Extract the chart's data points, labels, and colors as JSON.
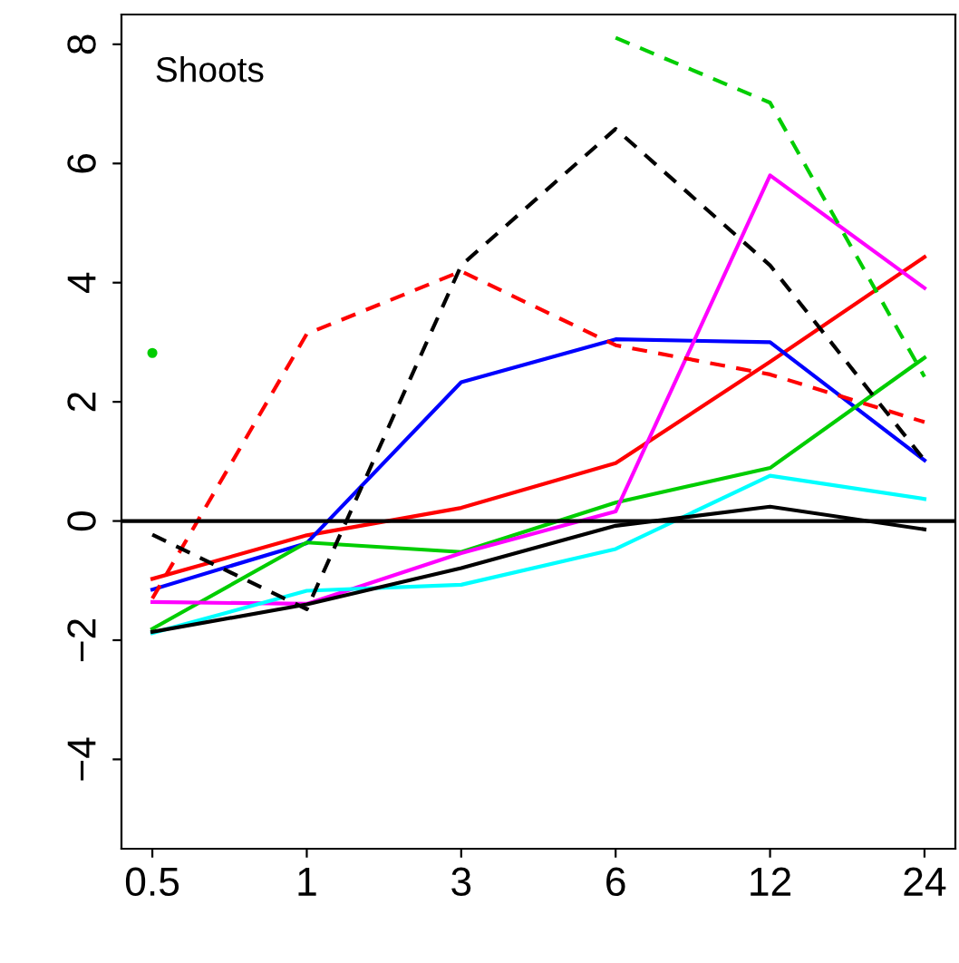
{
  "chart_data": {
    "type": "line",
    "categories": [
      "0.5",
      "1",
      "3",
      "6",
      "12",
      "24"
    ],
    "series": [
      {
        "color": "#ff0000",
        "line_style": "solid",
        "values": [
          -0.97,
          -0.24,
          0.22,
          0.97,
          2.67,
          4.43
        ]
      },
      {
        "color": "#0000ff",
        "line_style": "solid",
        "values": [
          -1.15,
          -0.37,
          2.33,
          3.05,
          3.0,
          1.02
        ]
      },
      {
        "color": "#00cd00",
        "line_style": "solid",
        "values": [
          -1.81,
          -0.36,
          -0.52,
          0.31,
          0.89,
          2.74
        ]
      },
      {
        "color": "#ff00ff",
        "line_style": "solid",
        "values": [
          -1.36,
          -1.39,
          -0.54,
          0.16,
          5.8,
          3.91
        ]
      },
      {
        "color": "#00ffff",
        "line_style": "solid",
        "values": [
          -1.88,
          -1.17,
          -1.07,
          -0.47,
          0.76,
          0.37
        ]
      },
      {
        "color": "#000000",
        "line_style": "solid",
        "values": [
          -1.86,
          -1.4,
          -0.79,
          -0.08,
          0.24,
          -0.14
        ]
      },
      {
        "color": "#ff0000",
        "line_style": "dashed",
        "values": [
          -1.3,
          3.14,
          4.19,
          2.95,
          2.46,
          1.66
        ]
      },
      {
        "color": "#000000",
        "line_style": "dashed",
        "values": [
          -0.23,
          -1.48,
          4.29,
          6.58,
          4.29,
          1.02
        ]
      },
      {
        "color": "#00cd00",
        "line_style": "dashed",
        "values": [
          2.82,
          null,
          null,
          8.11,
          7.02,
          2.42
        ]
      }
    ],
    "ylim": [
      -5.5,
      8.5
    ],
    "yticks": [
      {
        "value": -4,
        "label": "−4"
      },
      {
        "value": -2,
        "label": "−2"
      },
      0,
      2,
      4,
      6,
      8
    ],
    "ref_lines": [
      {
        "axis": "y",
        "value": 0,
        "color": "#000000",
        "line_style": "solid"
      }
    ],
    "annotations": [
      "Shoots"
    ],
    "grid": false,
    "legend": false,
    "marker": "none"
  }
}
